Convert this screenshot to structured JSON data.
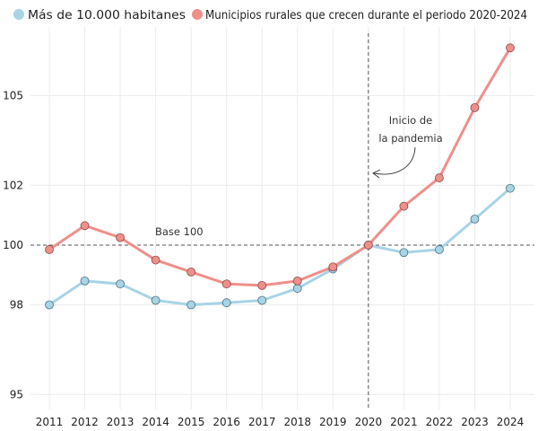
{
  "chart_data": {
    "type": "line",
    "title": "",
    "xlabel": "",
    "ylabel": "",
    "categories": [
      "2011",
      "2012",
      "2013",
      "2014",
      "2015",
      "2016",
      "2017",
      "2018",
      "2019",
      "2020",
      "2021",
      "2022",
      "2023",
      "2024"
    ],
    "ylim": [
      94.5,
      107.3
    ],
    "yticks": [
      95,
      98,
      100,
      102,
      105
    ],
    "grid": true,
    "legend_position": "top",
    "series": [
      {
        "name": "Más de 10.000 habitanes",
        "color": "#a8d4e6",
        "values": [
          98.0,
          98.8,
          98.7,
          98.15,
          98.0,
          98.07,
          98.15,
          98.55,
          99.2,
          100.0,
          99.75,
          99.85,
          100.87,
          101.9
        ]
      },
      {
        "name": "Municipios rurales que crecen durante el periodo 2020-2024",
        "color": "#ef8f8a",
        "values": [
          99.85,
          100.65,
          100.25,
          99.5,
          99.1,
          98.7,
          98.65,
          98.8,
          99.27,
          100.0,
          101.3,
          102.25,
          104.6,
          106.6
        ]
      }
    ],
    "annotations": {
      "baseline": {
        "y": 100,
        "label": "Base 100"
      },
      "vline": {
        "x": "2020",
        "label_line1": "Inicio de",
        "label_line2": "la pandemia"
      }
    }
  }
}
